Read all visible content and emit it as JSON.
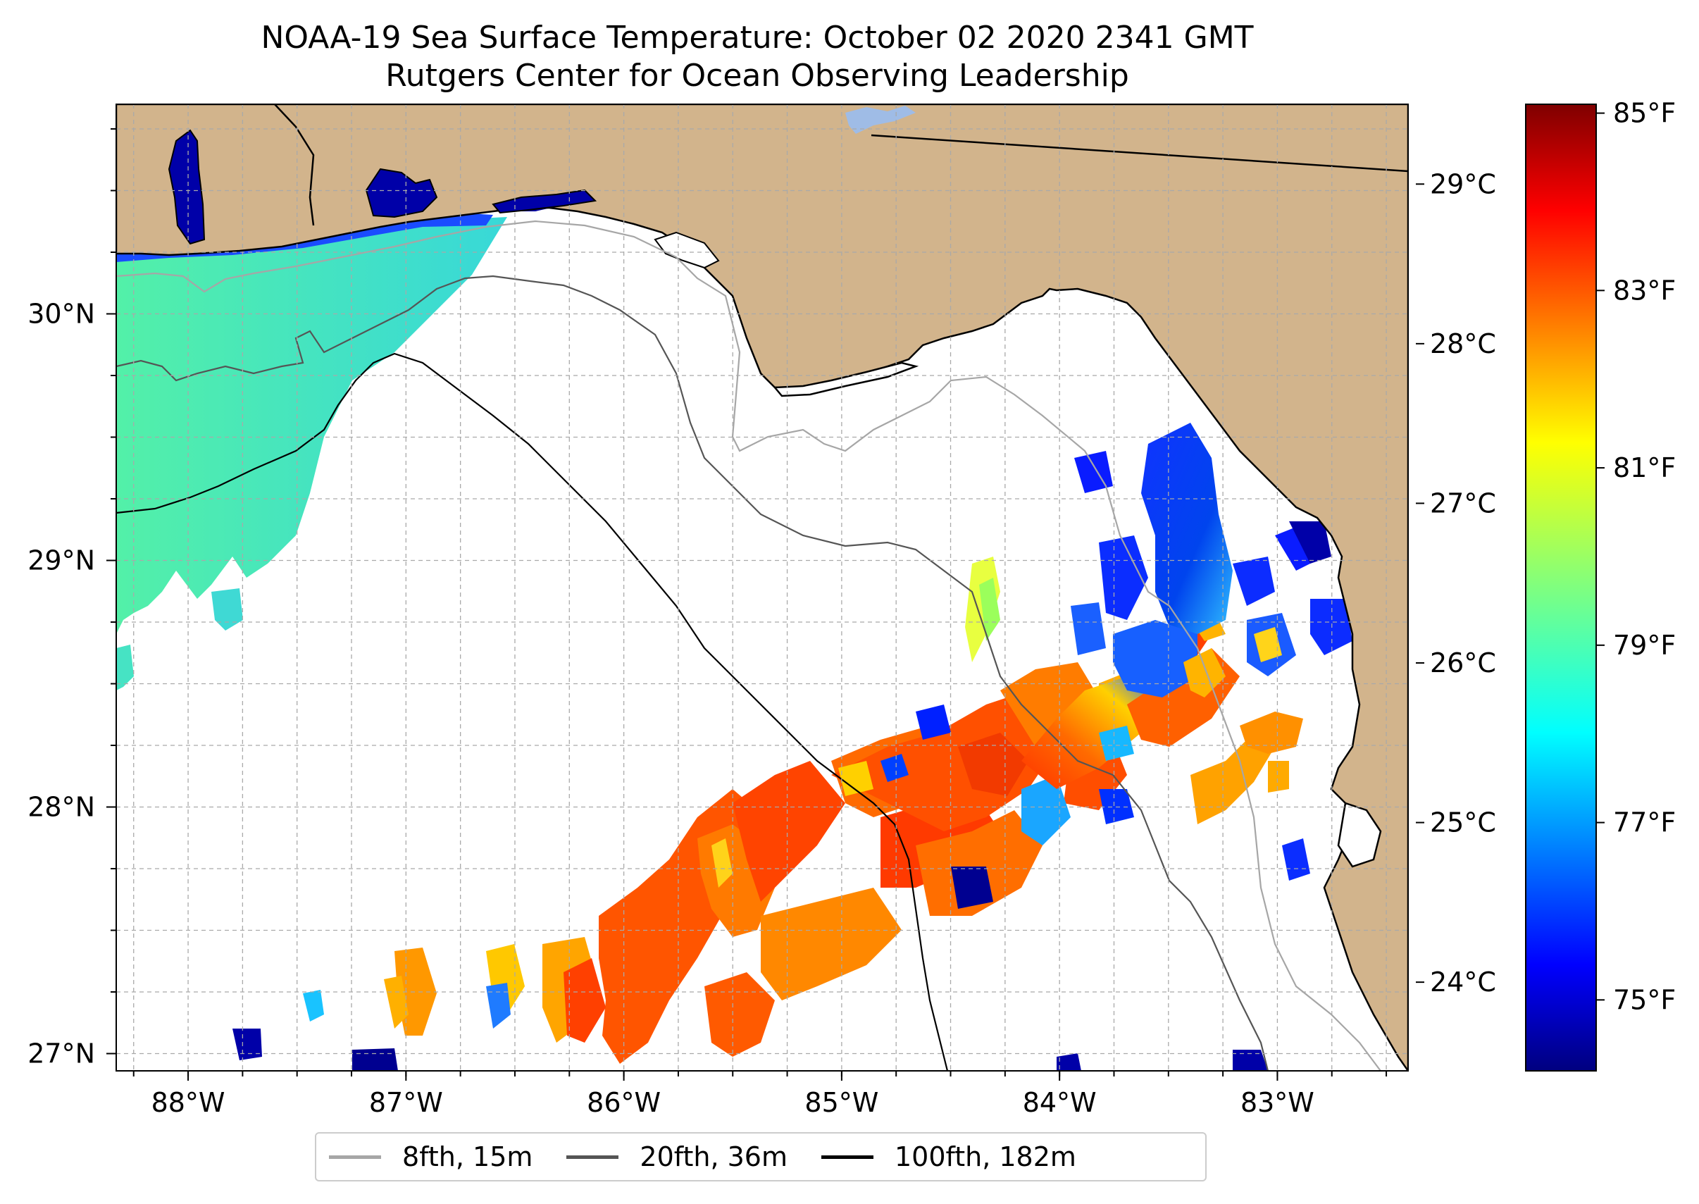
{
  "title": {
    "line1": "NOAA-19 Sea Surface Temperature: October 02 2020 2341 GMT",
    "line2": "Rutgers Center for Ocean Observing Leadership"
  },
  "map": {
    "lon_range": [
      -88.33,
      -82.4
    ],
    "lat_range": [
      26.93,
      30.85
    ],
    "lon_ticks": [
      {
        "value": -88,
        "label": "88°W"
      },
      {
        "value": -87,
        "label": "87°W"
      },
      {
        "value": -86,
        "label": "86°W"
      },
      {
        "value": -85,
        "label": "85°W"
      },
      {
        "value": -84,
        "label": "84°W"
      },
      {
        "value": -83,
        "label": "83°W"
      }
    ],
    "lat_ticks": [
      {
        "value": 27,
        "label": "27°N"
      },
      {
        "value": 28,
        "label": "28°N"
      },
      {
        "value": 29,
        "label": "29°N"
      },
      {
        "value": 30,
        "label": "30°N"
      }
    ],
    "colors": {
      "land": "#d2b48c",
      "lake": "#9fbce6",
      "grid": "#a9a9a9"
    }
  },
  "colorbar": {
    "vmin_f": 74.2,
    "vmax_f": 85.1,
    "celsius_ticks": [
      {
        "value": 24,
        "label": "24°C"
      },
      {
        "value": 25,
        "label": "25°C"
      },
      {
        "value": 26,
        "label": "26°C"
      },
      {
        "value": 27,
        "label": "27°C"
      },
      {
        "value": 28,
        "label": "28°C"
      },
      {
        "value": 29,
        "label": "29°C"
      }
    ],
    "fahrenheit_ticks": [
      {
        "value": 75,
        "label": "75°F"
      },
      {
        "value": 77,
        "label": "77°F"
      },
      {
        "value": 79,
        "label": "79°F"
      },
      {
        "value": 81,
        "label": "81°F"
      },
      {
        "value": 83,
        "label": "83°F"
      },
      {
        "value": 85,
        "label": "85°F"
      }
    ],
    "colormap": [
      "#00007f",
      "#0000ff",
      "#007fff",
      "#00ffff",
      "#7fff7f",
      "#ffff00",
      "#ff7f00",
      "#ff0000",
      "#7f0000"
    ]
  },
  "legend": {
    "items": [
      {
        "label": "8fth, 15m",
        "color": "#a6a6a6"
      },
      {
        "label": "20fth, 36m",
        "color": "#555555"
      },
      {
        "label": "100fth, 182m",
        "color": "#000000"
      }
    ]
  }
}
